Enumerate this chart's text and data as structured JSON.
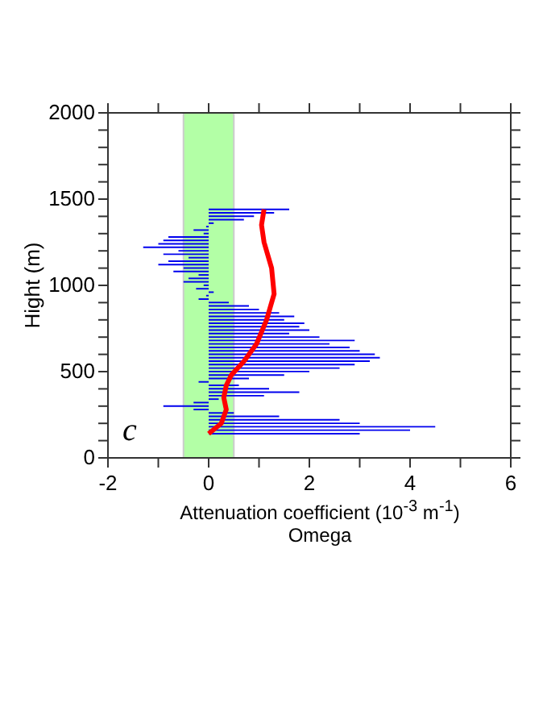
{
  "chart_data": {
    "type": "bar",
    "orientation": "horizontal",
    "xlabel": "Attenuation coefficient (10$^{-3}$ m$^{-1}$)",
    "ylabel": "Hight (m)",
    "annotations": [
      "Omega",
      "c"
    ],
    "x": [
      1440,
      1420,
      1400,
      1380,
      1360,
      1340,
      1320,
      1300,
      1280,
      1260,
      1240,
      1220,
      1200,
      1180,
      1160,
      1140,
      1120,
      1100,
      1080,
      1060,
      1040,
      1020,
      1000,
      980,
      960,
      940,
      920,
      900,
      880,
      860,
      840,
      820,
      800,
      780,
      760,
      740,
      720,
      700,
      680,
      660,
      640,
      620,
      600,
      580,
      560,
      540,
      520,
      500,
      480,
      460,
      440,
      420,
      400,
      380,
      360,
      340,
      320,
      300,
      280,
      260,
      240,
      220,
      200,
      180,
      160,
      140
    ],
    "series": [
      {
        "color": "#0000ee",
        "values": [
          1.6,
          1.3,
          0.9,
          0.7,
          0.1,
          -0.05,
          -0.3,
          -0.1,
          -0.8,
          -0.9,
          -1.0,
          -1.3,
          -0.6,
          -0.9,
          -0.4,
          -0.8,
          -1.0,
          -0.5,
          -0.7,
          -0.2,
          -0.4,
          -0.5,
          -0.1,
          -0.25,
          0.1,
          -0.05,
          -0.2,
          0.4,
          0.8,
          1.0,
          1.4,
          1.7,
          1.5,
          1.9,
          1.8,
          2.0,
          1.6,
          2.2,
          2.9,
          2.4,
          2.8,
          3.0,
          3.3,
          3.4,
          3.2,
          2.9,
          2.6,
          2.0,
          1.5,
          0.8,
          -0.2,
          0.6,
          1.2,
          1.8,
          1.1,
          0.2,
          -0.3,
          -0.9,
          -0.3,
          0.5,
          1.4,
          2.6,
          3.0,
          4.5,
          4.0,
          3.0
        ]
      },
      {
        "type": "line",
        "color": "#ff0000",
        "x": [
          140,
          200,
          280,
          350,
          420,
          480,
          560,
          660,
          800,
          950,
          1100,
          1250,
          1350,
          1440
        ],
        "values": [
          0,
          0.25,
          0.35,
          0.3,
          0.35,
          0.45,
          0.7,
          0.95,
          1.15,
          1.3,
          1.25,
          1.1,
          1.05,
          1.1
        ]
      }
    ],
    "bands": [
      {
        "axis": "x",
        "from": -0.5,
        "to": 0.5,
        "color": "#b3ffa6"
      }
    ],
    "xlim": [
      -2,
      6
    ],
    "xticks": [
      -2,
      {
        "value": -1,
        "label": null
      },
      0,
      {
        "value": 1,
        "label": null
      },
      2,
      {
        "value": 3,
        "label": null
      },
      4,
      {
        "value": 5,
        "label": null
      },
      6
    ],
    "ylim": [
      0,
      2000
    ],
    "yticks": [
      0,
      {
        "value": 100,
        "label": null
      },
      {
        "value": 200,
        "label": null
      },
      {
        "value": 300,
        "label": null
      },
      {
        "value": 400,
        "label": null
      },
      500,
      {
        "value": 600,
        "label": null
      },
      {
        "value": 700,
        "label": null
      },
      {
        "value": 800,
        "label": null
      },
      {
        "value": 900,
        "label": null
      },
      1000,
      {
        "value": 1100,
        "label": null
      },
      {
        "value": 1200,
        "label": null
      },
      {
        "value": 1300,
        "label": null
      },
      {
        "value": 1400,
        "label": null
      },
      1500,
      {
        "value": 1600,
        "label": null
      },
      {
        "value": 1700,
        "label": null
      },
      {
        "value": 1800,
        "label": null
      },
      {
        "value": 1900,
        "label": null
      },
      2000
    ],
    "legend": false
  }
}
